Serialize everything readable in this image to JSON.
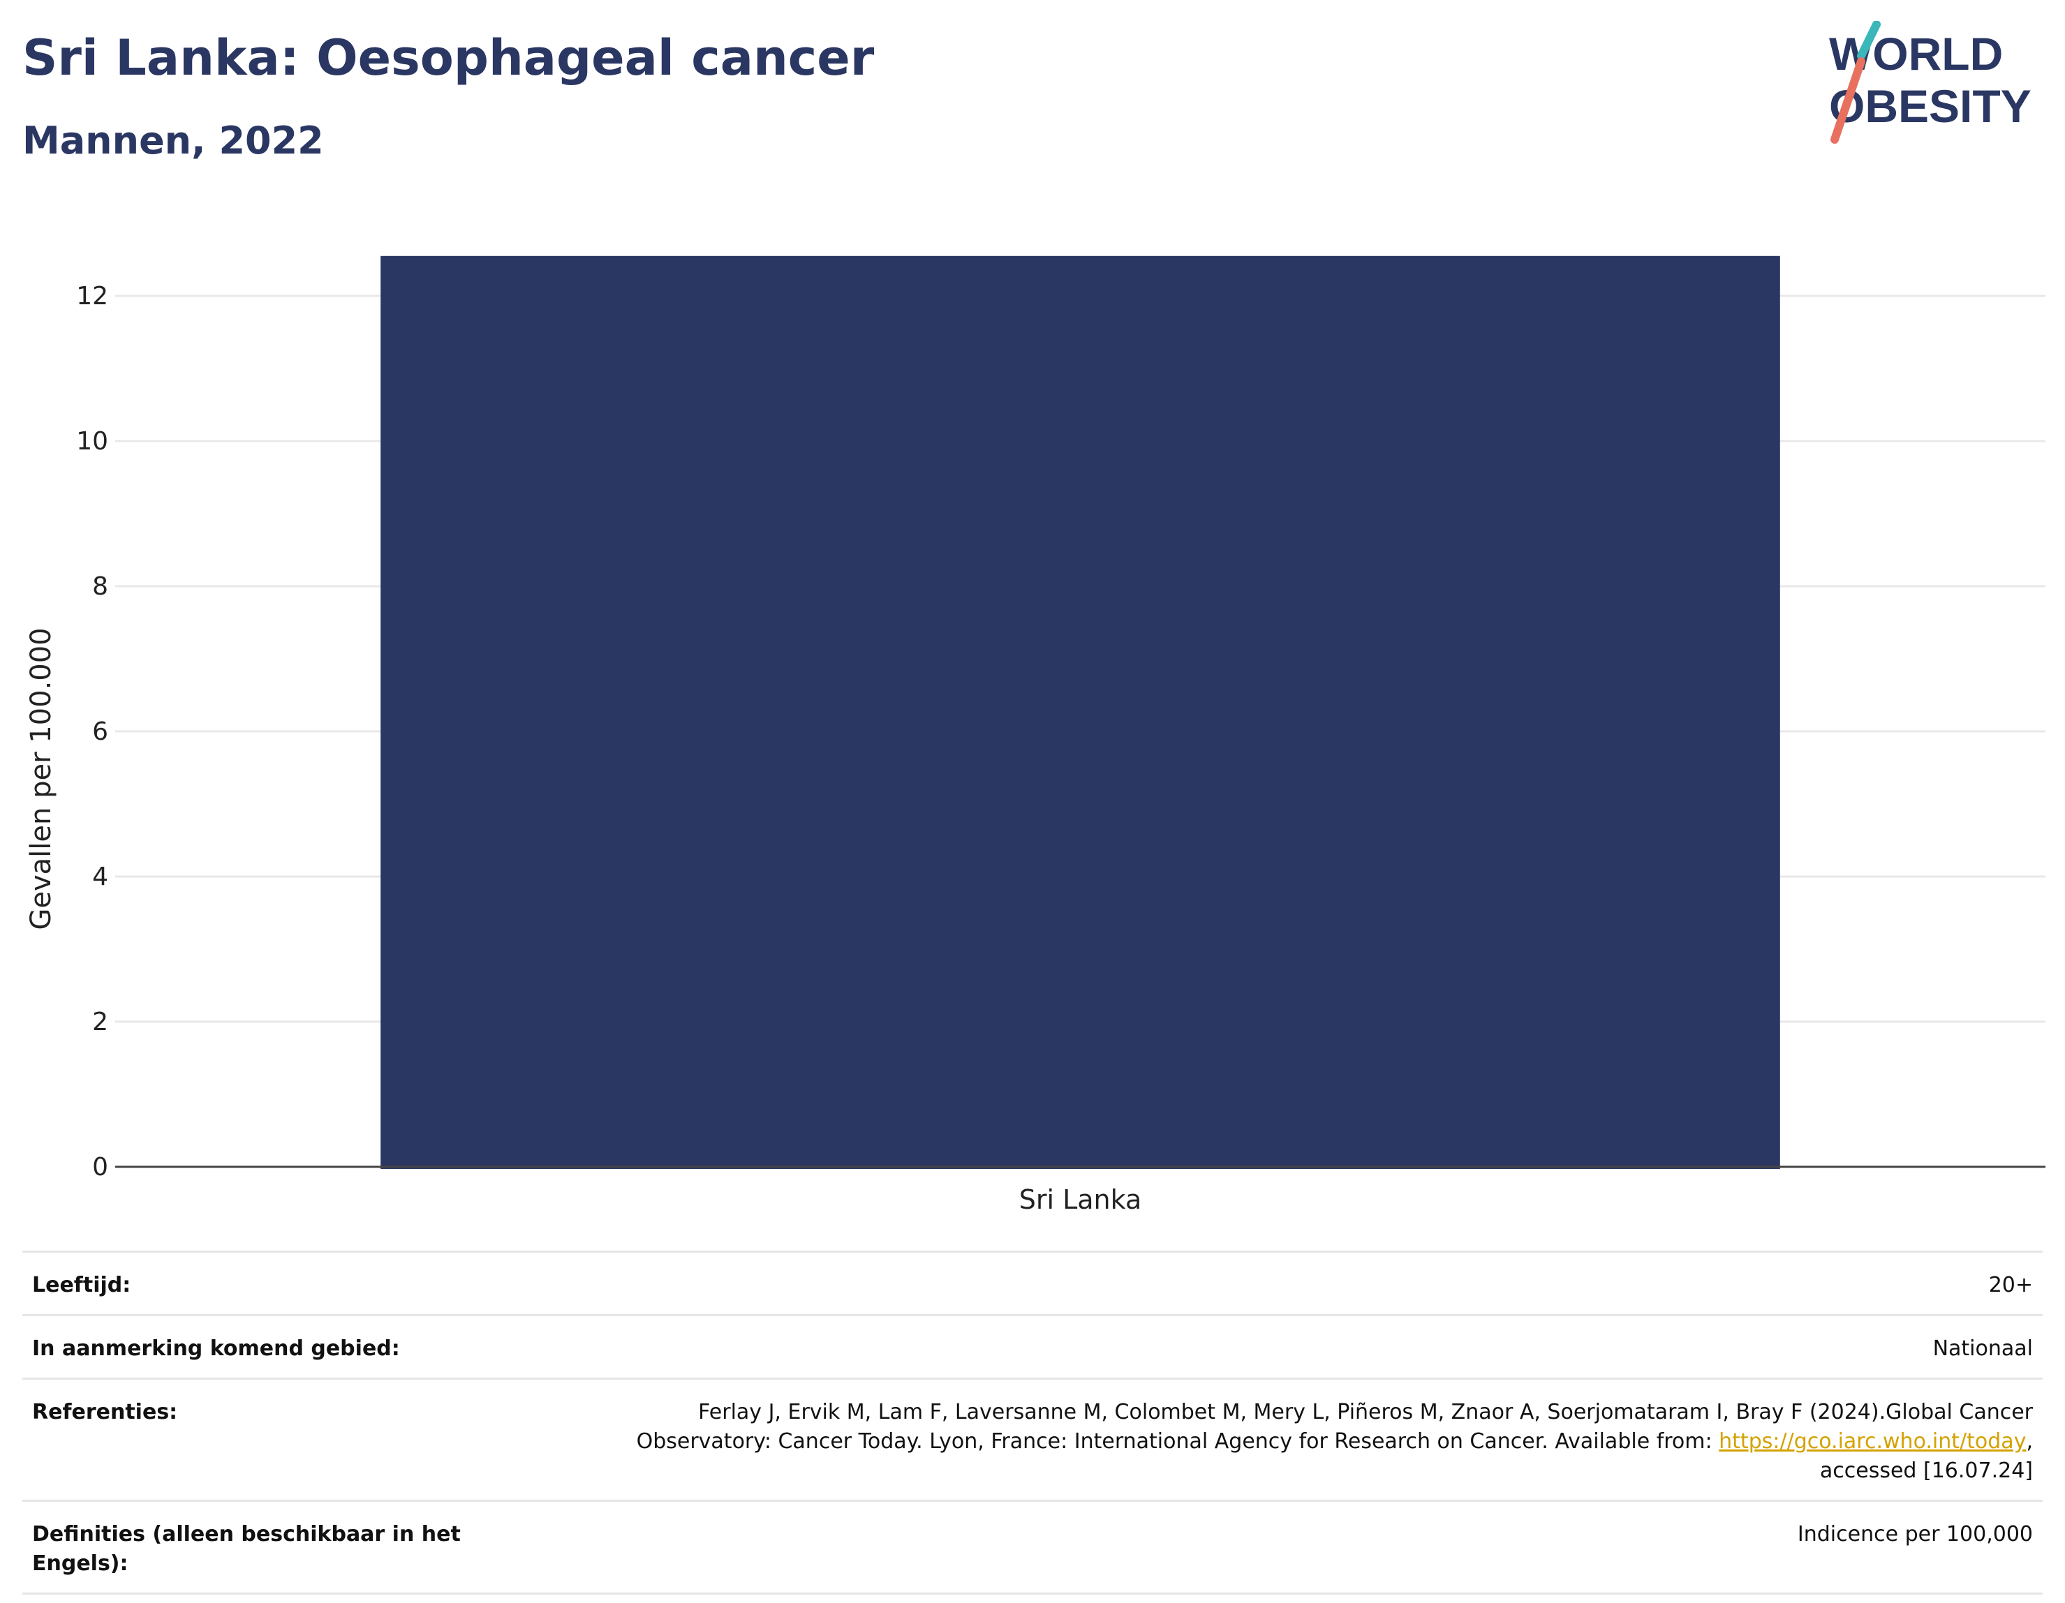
{
  "header": {
    "title": "Sri Lanka: Oesophageal cancer",
    "subtitle": "Mannen, 2022",
    "logo_line1": "WORLD",
    "logo_line2": "OBESITY"
  },
  "colors": {
    "bar": "#2b3763",
    "title": "#2b3763",
    "link": "#d4a200",
    "logo_teal": "#3bb7b9",
    "logo_coral": "#e8705f"
  },
  "chart_data": {
    "type": "bar",
    "categories": [
      "Sri Lanka"
    ],
    "values": [
      12.55
    ],
    "title": "",
    "xlabel": "",
    "ylabel": "Gevallen per 100.000",
    "ylim": [
      0,
      13
    ],
    "yticks": [
      0,
      2,
      4,
      6,
      8,
      10,
      12
    ],
    "grid": true,
    "legend": "none"
  },
  "meta": {
    "rows": [
      {
        "key": "Leeftijd:",
        "value": "20+"
      },
      {
        "key": "In aanmerking komend gebied:",
        "value": "Nationaal"
      },
      {
        "key": "Definities (alleen beschikbaar in het Engels):",
        "value": "Indicence per 100,000"
      }
    ],
    "references": {
      "key": "Referenties:",
      "text_before": "Ferlay J, Ervik M, Lam F, Laversanne M, Colombet M, Mery L, Piñeros M, Znaor A, Soerjomataram I, Bray F (2024).Global Cancer Observatory: Cancer Today. Lyon, France: International Agency for Research on Cancer. Available from: ",
      "link": "https://gco.iarc.who.int/today",
      "text_after": ", accessed [16.07.24]"
    }
  }
}
